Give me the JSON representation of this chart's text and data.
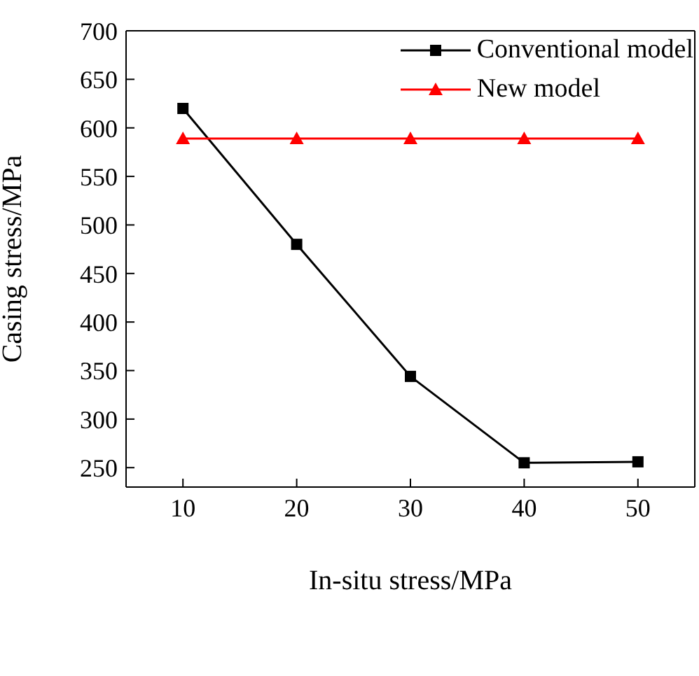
{
  "chart_data": {
    "type": "line",
    "xlabel": "In-situ stress/MPa",
    "ylabel": "Casing stress/MPa",
    "x": [
      10,
      20,
      30,
      40,
      50
    ],
    "series": [
      {
        "name": "Conventional model",
        "color": "#000000",
        "marker": "square",
        "values": [
          620,
          480,
          344,
          255,
          256
        ]
      },
      {
        "name": "New model",
        "color": "#ff0000",
        "marker": "triangle",
        "values": [
          589,
          589,
          589,
          589,
          589
        ]
      }
    ],
    "xlim": [
      5,
      55
    ],
    "xticks": [
      10,
      20,
      30,
      40,
      50
    ],
    "ylim": [
      230,
      700
    ],
    "yticks": [
      250,
      300,
      350,
      400,
      450,
      500,
      550,
      600,
      650,
      700
    ],
    "grid": false,
    "legend": "top right",
    "line_style": "solid"
  }
}
